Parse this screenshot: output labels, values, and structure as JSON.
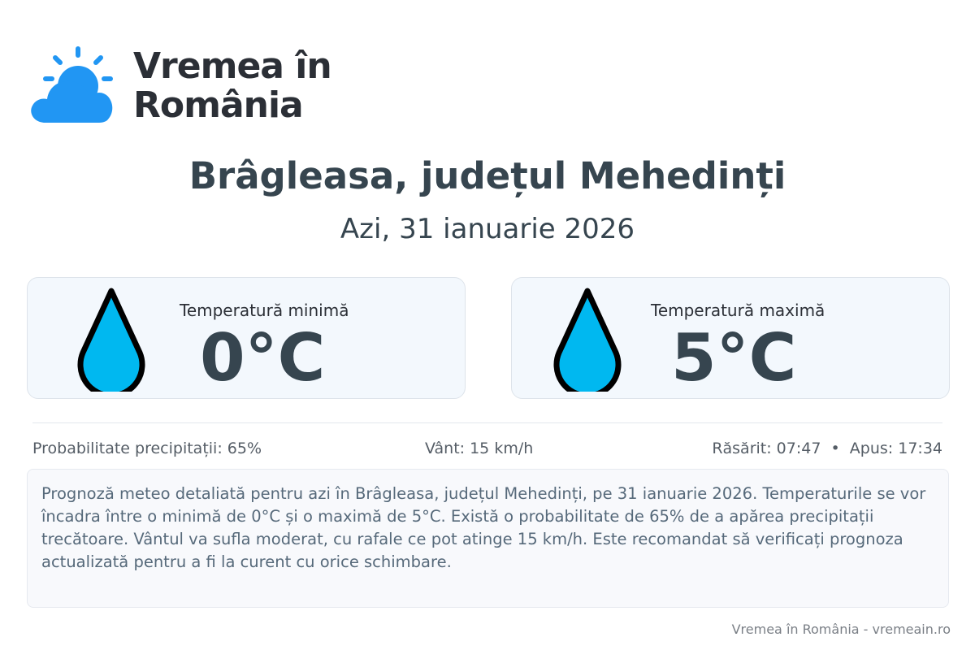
{
  "brand": {
    "logo_line1": "Vremea în",
    "logo_line2": "România",
    "accent": "#2196f3"
  },
  "header": {
    "title": "Brâgleasa, județul Mehedinți",
    "date": "Azi, 31 ianuarie 2026"
  },
  "cards": [
    {
      "label": "Temperatură minimă",
      "value": "0°C",
      "icon": "water-drop-icon"
    },
    {
      "label": "Temperatură maximă",
      "value": "5°C",
      "icon": "water-drop-icon"
    }
  ],
  "stats": {
    "precipitation": "Probabilitate precipitații: 65%",
    "wind": "Vânt: 15 km/h",
    "sun": "Răsărit: 07:47  •  Apus: 17:34"
  },
  "description": "Prognoză meteo detaliată pentru azi în Brâgleasa, județul Mehedinți, pe 31 ianuarie 2026. Temperaturile se vor încadra între o minimă de 0°C și o maximă de 5°C. Există o probabilitate de 65% de a apărea precipitații trecătoare. Vântul va sufla moderat, cu rafale ce pot atinge 15 km/h. Este recomandat să verificați prognoza actualizată pentru a fi la curent cu orice schimbare.",
  "footer": "Vremea în România - vremeain.ro",
  "colors": {
    "drop_fill": "#00b8f0",
    "text_dark": "#36454f"
  }
}
